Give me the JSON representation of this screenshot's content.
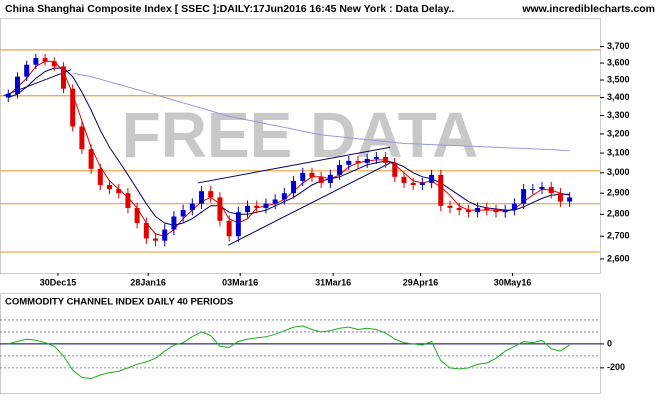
{
  "chart_data": [
    {
      "type": "candlestick",
      "title": "China Shanghai Composite Index [ SSEC ]:DAILY:17Jun2016 16:45 New York : Data Delay..",
      "source": "www.incrediblecharts.com",
      "watermark": "FREE DATA",
      "log_scale": true,
      "xlim": [
        -0.9,
        64.3
      ],
      "ylim": [
        2540,
        3880
      ],
      "yticks": [
        {
          "value": 3700,
          "label": "3,700"
        },
        {
          "value": 3600,
          "label": "3,600"
        },
        {
          "value": 3500,
          "label": "3,500"
        },
        {
          "value": 3400,
          "label": "3,400"
        },
        {
          "value": 3300,
          "label": "3,300"
        },
        {
          "value": 3200,
          "label": "3,200"
        },
        {
          "value": 3100,
          "label": "3,100"
        },
        {
          "value": 3000,
          "label": "3,000"
        },
        {
          "value": 2900,
          "label": "2,900"
        },
        {
          "value": 2800,
          "label": "2,800"
        },
        {
          "value": 2700,
          "label": "2,700"
        },
        {
          "value": 2600,
          "label": "2,600"
        }
      ],
      "xticks": [
        {
          "value": 5.4,
          "label": "30Dec15"
        },
        {
          "value": 15.2,
          "label": "28Jan16"
        },
        {
          "value": 25.2,
          "label": "03Mar16"
        },
        {
          "value": 35.3,
          "label": "31Mar16"
        },
        {
          "value": 44.8,
          "label": "29Apr16"
        },
        {
          "value": 54.8,
          "label": "30May16"
        }
      ],
      "up_color": "#0000cc",
      "down_color": "#e00000",
      "open": [
        3400,
        3420,
        3520,
        3590,
        3630,
        3610,
        3580,
        3450,
        3240,
        3120,
        3020,
        2940,
        2920,
        2900,
        2830,
        2760,
        2690,
        2680,
        2730,
        2790,
        2820,
        2850,
        2910,
        2880,
        2770,
        2700,
        2810,
        2840,
        2830,
        2850,
        2870,
        2900,
        2960,
        3000,
        2980,
        2950,
        2990,
        3040,
        3060,
        3050,
        3070,
        3080,
        3050,
        2980,
        2950,
        2940,
        2950,
        2990,
        2840,
        2830,
        2820,
        2810,
        2830,
        2820,
        2810,
        2820,
        2850,
        2920,
        2920,
        2930,
        2900,
        2860
      ],
      "high": [
        3445,
        3545,
        3615,
        3655,
        3655,
        3635,
        3605,
        3475,
        3265,
        3145,
        3045,
        2965,
        2945,
        2925,
        2855,
        2785,
        2715,
        2755,
        2815,
        2845,
        2875,
        2935,
        2935,
        2905,
        2795,
        2835,
        2865,
        2865,
        2875,
        2895,
        2925,
        2985,
        3025,
        3025,
        3005,
        3015,
        3065,
        3085,
        3085,
        3095,
        3105,
        3105,
        3075,
        3005,
        2975,
        2975,
        3015,
        3015,
        2865,
        2855,
        2845,
        2855,
        2855,
        2845,
        2845,
        2875,
        2945,
        2945,
        2955,
        2955,
        2925,
        2905
      ],
      "low": [
        3375,
        3395,
        3495,
        3565,
        3585,
        3555,
        3425,
        3215,
        3095,
        2995,
        2915,
        2895,
        2875,
        2805,
        2735,
        2665,
        2655,
        2655,
        2705,
        2765,
        2795,
        2825,
        2855,
        2745,
        2675,
        2675,
        2785,
        2805,
        2805,
        2825,
        2845,
        2875,
        2935,
        2955,
        2925,
        2925,
        2965,
        3015,
        3025,
        3025,
        3045,
        3025,
        2955,
        2925,
        2915,
        2915,
        2925,
        2815,
        2805,
        2795,
        2785,
        2785,
        2795,
        2785,
        2785,
        2795,
        2825,
        2895,
        2895,
        2875,
        2835,
        2835
      ],
      "close": [
        3420,
        3520,
        3590,
        3630,
        3610,
        3580,
        3450,
        3240,
        3120,
        3020,
        2940,
        2920,
        2900,
        2830,
        2760,
        2690,
        2680,
        2730,
        2790,
        2820,
        2850,
        2910,
        2880,
        2770,
        2700,
        2810,
        2840,
        2830,
        2850,
        2870,
        2900,
        2960,
        3000,
        2980,
        2950,
        2990,
        3040,
        3060,
        3050,
        3070,
        3080,
        3050,
        2980,
        2950,
        2940,
        2950,
        2990,
        2840,
        2830,
        2820,
        2810,
        2830,
        2820,
        2810,
        2820,
        2850,
        2920,
        2920,
        2930,
        2900,
        2860,
        2880
      ],
      "series": [
        {
          "color": "#e00000",
          "values": [
            3410,
            3460,
            3510,
            3580,
            3610,
            3610,
            3550,
            3420,
            3270,
            3130,
            3030,
            2960,
            2920,
            2880,
            2830,
            2760,
            2710,
            2700,
            2730,
            2780,
            2820,
            2860,
            2880,
            2850,
            2780,
            2760,
            2780,
            2830,
            2840,
            2850,
            2870,
            2910,
            2950,
            2980,
            2980,
            2970,
            2990,
            3030,
            3050,
            3060,
            3065,
            3065,
            3040,
            3000,
            2960,
            2950,
            2960,
            2930,
            2890,
            2840,
            2820,
            2820,
            2820,
            2820,
            2815,
            2825,
            2860,
            2890,
            2920,
            2915,
            2900,
            2890
          ]
        },
        {
          "color": "#000066",
          "values": [
            3400,
            3420,
            3460,
            3510,
            3550,
            3570,
            3570,
            3520,
            3430,
            3330,
            3220,
            3130,
            3060,
            2990,
            2920,
            2850,
            2790,
            2760,
            2750,
            2760,
            2780,
            2810,
            2840,
            2840,
            2810,
            2800,
            2800,
            2810,
            2820,
            2840,
            2860,
            2880,
            2910,
            2940,
            2960,
            2970,
            2980,
            3000,
            3020,
            3040,
            3050,
            3060,
            3050,
            3030,
            3000,
            2980,
            2970,
            2950,
            2920,
            2890,
            2860,
            2840,
            2830,
            2825,
            2820,
            2820,
            2835,
            2855,
            2875,
            2890,
            2895,
            2895
          ]
        },
        {
          "color": "#9999dd",
          "values": [
            null,
            null,
            null,
            null,
            null,
            null,
            null,
            3540,
            3530,
            3520,
            3505,
            3490,
            3475,
            3460,
            3445,
            3430,
            3415,
            3400,
            3385,
            3370,
            3355,
            3340,
            3325,
            3310,
            3295,
            3285,
            3275,
            3265,
            3255,
            3245,
            3235,
            3225,
            3215,
            3205,
            3195,
            3190,
            3185,
            3180,
            3175,
            3170,
            3165,
            3160,
            3155,
            3150,
            3148,
            3146,
            3144,
            3142,
            3140,
            3138,
            3136,
            3134,
            3132,
            3130,
            3128,
            3126,
            3124,
            3122,
            3120,
            3118,
            3115,
            3112
          ]
        }
      ],
      "levels": [
        3680,
        3410,
        3010,
        2850,
        2630
      ],
      "level_color": "#e8a33c",
      "trendlines": [
        {
          "x": [
            -0.5,
            6.8
          ],
          "y": [
            3410,
            3560
          ]
        },
        {
          "x": [
            20.6,
            41.5
          ],
          "y": [
            2950,
            3130
          ]
        },
        {
          "x": [
            23.9,
            41.5
          ],
          "y": [
            2660,
            3050
          ]
        }
      ],
      "trend_color": "#000066"
    },
    {
      "type": "line",
      "title": "COMMODITY CHANNEL INDEX DAILY 40 PERIODS",
      "xlim": [
        -0.9,
        64.3
      ],
      "ylim": [
        -410,
        425
      ],
      "yticks": [
        0,
        -200
      ],
      "grid_levels": [
        200,
        100,
        -100,
        -200
      ],
      "zero_color": "#000066",
      "series": [
        {
          "color": "#22aa22",
          "values": [
            0,
            20,
            40,
            30,
            10,
            -20,
            -100,
            -220,
            -280,
            -290,
            -260,
            -240,
            -230,
            -200,
            -170,
            -150,
            -120,
            -60,
            -10,
            10,
            60,
            100,
            70,
            -20,
            -30,
            20,
            40,
            50,
            60,
            80,
            110,
            140,
            150,
            120,
            100,
            110,
            130,
            140,
            120,
            130,
            120,
            90,
            40,
            10,
            0,
            -10,
            20,
            -140,
            -200,
            -210,
            -200,
            -170,
            -160,
            -120,
            -60,
            -20,
            20,
            10,
            30,
            -40,
            -60,
            -10
          ]
        }
      ]
    }
  ]
}
